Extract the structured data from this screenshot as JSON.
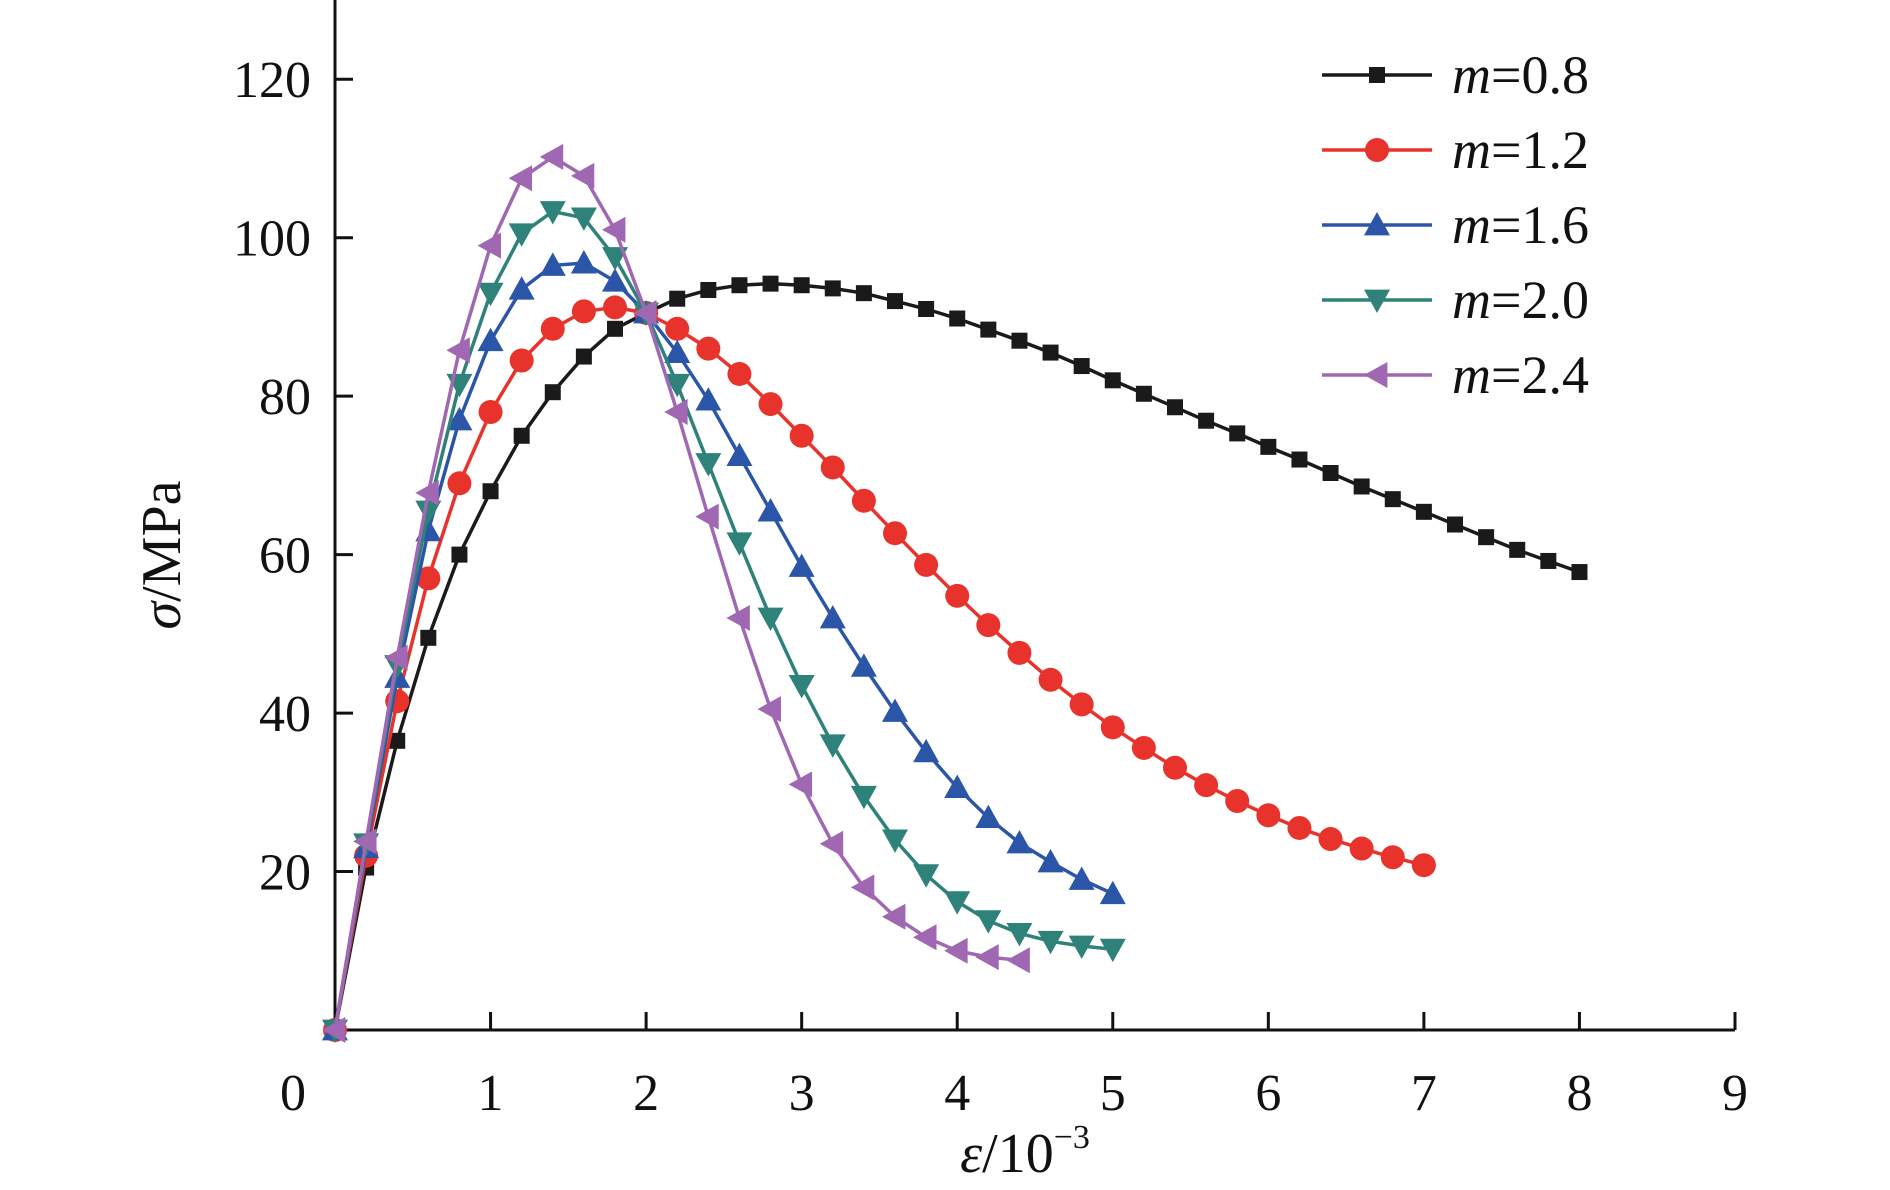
{
  "chart_data": {
    "type": "line",
    "xlabel": {
      "symbol": "ε",
      "rest": "/10",
      "sup": "−3"
    },
    "ylabel": {
      "symbol": "σ",
      "rest": "/MPa"
    },
    "xlim": [
      0,
      9
    ],
    "ylim": [
      0,
      130
    ],
    "xticks": [
      "0",
      "1",
      "2",
      "3",
      "4",
      "5",
      "6",
      "7",
      "8",
      "9"
    ],
    "yticks": [
      "20",
      "40",
      "60",
      "80",
      "100",
      "120"
    ],
    "grid": false,
    "legend_position": "top-right",
    "series": [
      {
        "name": {
          "var": "m",
          "val": "=0.8"
        },
        "color": "#1a1a1a",
        "marker": "square",
        "x": [
          0,
          0.2,
          0.4,
          0.6,
          0.8,
          1.0,
          1.2,
          1.4,
          1.6,
          1.8,
          2.0,
          2.2,
          2.4,
          2.6,
          2.8,
          3.0,
          3.2,
          3.4,
          3.6,
          3.8,
          4.0,
          4.2,
          4.4,
          4.6,
          4.8,
          5.0,
          5.2,
          5.4,
          5.6,
          5.8,
          6.0,
          6.2,
          6.4,
          6.6,
          6.8,
          7.0,
          7.2,
          7.4,
          7.6,
          7.8,
          8.0
        ],
        "y": [
          0,
          20.5,
          36.5,
          49.5,
          60,
          68,
          75,
          80.5,
          85,
          88.5,
          90.5,
          92.3,
          93.4,
          94,
          94.2,
          94,
          93.6,
          93,
          92,
          91,
          89.8,
          88.4,
          87,
          85.5,
          83.8,
          82,
          80.3,
          78.6,
          76.9,
          75.3,
          73.6,
          72,
          70.3,
          68.6,
          67,
          65.4,
          63.8,
          62.2,
          60.6,
          59.2,
          57.8
        ]
      },
      {
        "name": {
          "var": "m",
          "val": "=1.2"
        },
        "color": "#e8332c",
        "marker": "circle",
        "x": [
          0,
          0.2,
          0.4,
          0.6,
          0.8,
          1.0,
          1.2,
          1.4,
          1.6,
          1.8,
          2.0,
          2.2,
          2.4,
          2.6,
          2.8,
          3.0,
          3.2,
          3.4,
          3.6,
          3.8,
          4.0,
          4.2,
          4.4,
          4.6,
          4.8,
          5.0,
          5.2,
          5.4,
          5.6,
          5.8,
          6.0,
          6.2,
          6.4,
          6.6,
          6.8,
          7.0
        ],
        "y": [
          0,
          22,
          41.5,
          57,
          69,
          78,
          84.5,
          88.5,
          90.7,
          91.2,
          90.5,
          88.5,
          86,
          82.8,
          79,
          75,
          71,
          66.8,
          62.7,
          58.7,
          54.8,
          51.1,
          47.6,
          44.2,
          41.1,
          38.2,
          35.6,
          33.1,
          30.9,
          28.9,
          27.1,
          25.5,
          24.1,
          22.9,
          21.8,
          20.8
        ]
      },
      {
        "name": {
          "var": "m",
          "val": "=1.6"
        },
        "color": "#2b56a8",
        "marker": "triangle-up",
        "x": [
          0,
          0.2,
          0.4,
          0.6,
          0.8,
          1.0,
          1.2,
          1.4,
          1.6,
          1.8,
          2.0,
          2.2,
          2.4,
          2.6,
          2.8,
          3.0,
          3.2,
          3.4,
          3.6,
          3.8,
          4.0,
          4.2,
          4.4,
          4.6,
          4.8,
          5.0
        ],
        "y": [
          0,
          23,
          44.5,
          63,
          77,
          87,
          93.5,
          96.5,
          96.8,
          94.5,
          90.5,
          85.5,
          79.5,
          72.5,
          65.5,
          58.5,
          52,
          45.9,
          40.2,
          35.1,
          30.6,
          26.8,
          23.6,
          21.2,
          19,
          17.2
        ]
      },
      {
        "name": {
          "var": "m",
          "val": "=2.0"
        },
        "color": "#2e8279",
        "marker": "triangle-down",
        "x": [
          0,
          0.2,
          0.4,
          0.6,
          0.8,
          1.0,
          1.2,
          1.4,
          1.6,
          1.8,
          2.0,
          2.2,
          2.4,
          2.6,
          2.8,
          3.0,
          3.2,
          3.4,
          3.6,
          3.8,
          4.0,
          4.2,
          4.4,
          4.6,
          4.8,
          5.0
        ],
        "y": [
          0,
          23.5,
          46,
          65.5,
          81.5,
          93,
          100.5,
          103.3,
          102.5,
          97.5,
          90.5,
          81.5,
          71.5,
          61.5,
          52,
          43.5,
          36,
          29.5,
          24,
          19.6,
          16.2,
          13.8,
          12.2,
          11.2,
          10.6,
          10.2
        ]
      },
      {
        "name": {
          "var": "m",
          "val": "=2.4"
        },
        "color": "#a067b2",
        "marker": "triangle-left",
        "x": [
          0,
          0.2,
          0.4,
          0.6,
          0.8,
          1.0,
          1.2,
          1.4,
          1.6,
          1.8,
          2.0,
          2.2,
          2.4,
          2.6,
          2.8,
          3.0,
          3.2,
          3.4,
          3.6,
          3.8,
          4.0,
          4.2,
          4.4
        ],
        "y": [
          0,
          23.8,
          47,
          67.8,
          85.8,
          99,
          107.5,
          110.2,
          107.8,
          101,
          90.5,
          78,
          64.8,
          52,
          40.5,
          31,
          23.5,
          18,
          14.3,
          11.7,
          10,
          9.2,
          8.8
        ]
      }
    ]
  }
}
